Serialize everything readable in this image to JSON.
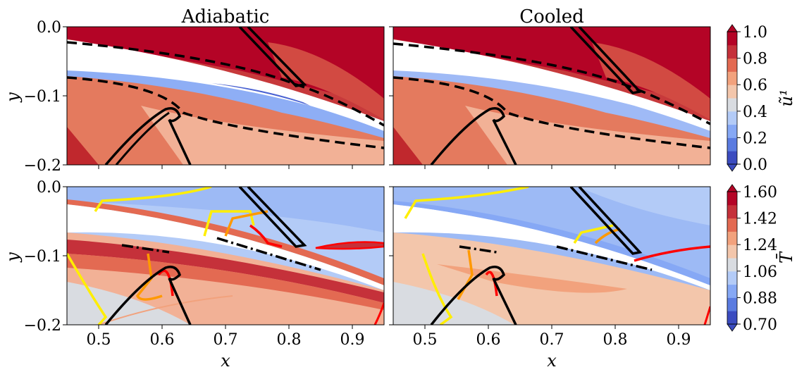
{
  "chart_data": [
    {
      "type": "heatmap",
      "title": "Adiabatic",
      "xlabel": "",
      "ylabel": "y",
      "xlim": [
        0.45,
        0.95
      ],
      "ylim": [
        -0.2,
        0.0
      ],
      "yticks": [
        "0.0",
        "−0.1",
        "−0.2"
      ],
      "colorbar_ref": "u"
    },
    {
      "type": "heatmap",
      "title": "Cooled",
      "xlabel": "",
      "ylabel": "",
      "xlim": [
        0.45,
        0.95
      ],
      "ylim": [
        -0.2,
        0.0
      ],
      "colorbar_ref": "u"
    },
    {
      "type": "heatmap",
      "title": "",
      "xlabel": "x",
      "ylabel": "y",
      "xlim": [
        0.45,
        0.95
      ],
      "ylim": [
        -0.2,
        0.0
      ],
      "xticks": [
        "0.5",
        "0.6",
        "0.7",
        "0.8",
        "0.9"
      ],
      "yticks": [
        "0.0",
        "−0.1",
        "−0.2"
      ],
      "colorbar_ref": "T"
    },
    {
      "type": "heatmap",
      "title": "",
      "xlabel": "x",
      "ylabel": "",
      "xlim": [
        0.45,
        0.95
      ],
      "ylim": [
        -0.2,
        0.0
      ],
      "xticks": [
        "0.5",
        "0.6",
        "0.7",
        "0.8",
        "0.9"
      ],
      "colorbar_ref": "T"
    }
  ],
  "colorbars": {
    "u": {
      "label": "ũ¹",
      "ticks": [
        "1.0",
        "0.8",
        "0.6",
        "0.4",
        "0.2",
        "0.0"
      ],
      "range": [
        0.0,
        1.0
      ],
      "colors": [
        "#3b4cc0",
        "#5a7be0",
        "#86a8f5",
        "#b3cbf7",
        "#d9dce1",
        "#f3c6ab",
        "#f2a27d",
        "#e36a52",
        "#c5313a",
        "#b40426"
      ]
    },
    "T": {
      "label": "T̄",
      "ticks": [
        "1.60",
        "1.42",
        "1.24",
        "1.06",
        "0.88",
        "0.70"
      ],
      "range": [
        0.7,
        1.6
      ],
      "colors": [
        "#3b4cc0",
        "#5a7be0",
        "#86a8f5",
        "#b3cbf7",
        "#d9dce1",
        "#f3c6ab",
        "#f2a27d",
        "#e36a52",
        "#c5313a",
        "#b40426"
      ]
    }
  }
}
